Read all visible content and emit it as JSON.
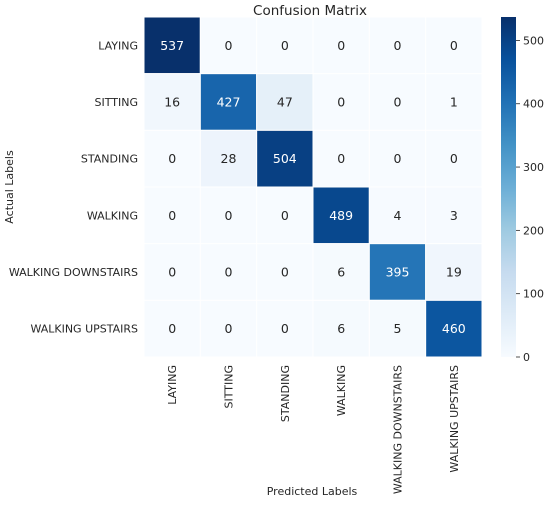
{
  "chart_data": {
    "type": "heatmap",
    "title": "Confusion Matrix",
    "xlabel": "Predicted Labels",
    "ylabel": "Actual Labels",
    "x_categories": [
      "LAYING",
      "SITTING",
      "STANDING",
      "WALKING",
      "WALKING DOWNSTAIRS",
      "WALKING UPSTAIRS"
    ],
    "y_categories": [
      "LAYING",
      "SITTING",
      "STANDING",
      "WALKING",
      "WALKING DOWNSTAIRS",
      "WALKING UPSTAIRS"
    ],
    "values": [
      [
        537,
        0,
        0,
        0,
        0,
        0
      ],
      [
        16,
        427,
        47,
        0,
        0,
        1
      ],
      [
        0,
        28,
        504,
        0,
        0,
        0
      ],
      [
        0,
        0,
        0,
        489,
        4,
        3
      ],
      [
        0,
        0,
        0,
        6,
        395,
        19
      ],
      [
        0,
        0,
        0,
        6,
        5,
        460
      ]
    ],
    "colorbar": {
      "colormap": "Blues",
      "min": 0,
      "max": 537,
      "ticks": [
        0,
        100,
        200,
        300,
        400,
        500
      ]
    },
    "cell_annotations": true
  }
}
